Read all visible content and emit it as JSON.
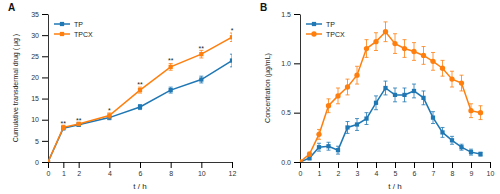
{
  "chart_data": [
    {
      "type": "line",
      "title": "A",
      "x_label": "t / h",
      "y_label": "Cumulative transdermal drug ( μg )",
      "x": [
        0,
        1,
        2,
        4,
        6,
        8,
        10,
        12
      ],
      "series": [
        {
          "name": "TP",
          "marker": "square",
          "values": [
            0,
            8.0,
            8.8,
            10.5,
            13.0,
            17.0,
            19.5,
            24.0
          ],
          "errors": [
            0,
            0.4,
            0.4,
            0.5,
            0.6,
            0.7,
            0.8,
            1.5
          ]
        },
        {
          "name": "TPCX",
          "marker": "square",
          "values": [
            0,
            8.2,
            9.0,
            11.0,
            17.0,
            22.5,
            25.5,
            29.5
          ],
          "errors": [
            0,
            0.5,
            0.4,
            0.6,
            0.7,
            0.8,
            0.9,
            1.0
          ]
        }
      ],
      "annotations": [
        {
          "x": 1,
          "y": 9.0,
          "text": "**"
        },
        {
          "x": 2,
          "y": 9.8,
          "text": "**"
        },
        {
          "x": 4,
          "y": 12.0,
          "text": "*"
        },
        {
          "x": 6,
          "y": 18.2,
          "text": "**"
        },
        {
          "x": 8,
          "y": 23.8,
          "text": "**"
        },
        {
          "x": 10,
          "y": 26.8,
          "text": "**"
        },
        {
          "x": 12,
          "y": 31.0,
          "text": "*"
        }
      ],
      "xlim": [
        0,
        12
      ],
      "ylim": [
        0,
        35
      ],
      "xticks": [
        0,
        1,
        2,
        4,
        6,
        8,
        10,
        12
      ],
      "yticks": [
        0,
        5,
        10,
        15,
        20,
        25,
        30,
        35
      ],
      "legend": "upper left"
    },
    {
      "type": "line",
      "title": "B",
      "x_label": "t / h",
      "y_label": "Concentration (μg/mL)",
      "x": [
        0,
        0.5,
        1,
        1.5,
        2,
        2.5,
        3,
        3.5,
        4,
        4.5,
        5,
        5.5,
        6,
        6.5,
        7,
        7.5,
        8,
        8.5,
        9,
        9.5
      ],
      "series": [
        {
          "name": "TP",
          "marker": "square",
          "values": [
            0,
            0.04,
            0.15,
            0.16,
            0.12,
            0.35,
            0.38,
            0.44,
            0.6,
            0.75,
            0.68,
            0.68,
            0.72,
            0.65,
            0.45,
            0.3,
            0.22,
            0.15,
            0.1,
            0.08
          ],
          "errors": [
            0,
            0.02,
            0.04,
            0.04,
            0.04,
            0.06,
            0.06,
            0.06,
            0.07,
            0.07,
            0.07,
            0.07,
            0.07,
            0.07,
            0.06,
            0.05,
            0.04,
            0.03,
            0.03,
            0.02
          ]
        },
        {
          "name": "TPCX",
          "marker": "circle",
          "values": [
            0,
            0.08,
            0.28,
            0.57,
            0.67,
            0.76,
            0.88,
            1.15,
            1.22,
            1.32,
            1.2,
            1.15,
            1.12,
            1.08,
            1.02,
            0.95,
            0.84,
            0.8,
            0.52,
            0.5
          ],
          "errors": [
            0,
            0.02,
            0.05,
            0.07,
            0.08,
            0.08,
            0.09,
            0.09,
            0.09,
            0.1,
            0.1,
            0.09,
            0.09,
            0.09,
            0.09,
            0.08,
            0.08,
            0.08,
            0.07,
            0.07
          ]
        }
      ],
      "xlim": [
        0,
        10
      ],
      "ylim": [
        0,
        1.5
      ],
      "xticks": [
        0,
        1,
        2,
        3,
        4,
        5,
        6,
        7,
        8,
        9,
        10
      ],
      "yticks": [
        {
          "value": 0.0,
          "label": "0.0"
        },
        0.5,
        {
          "value": 1.0,
          "label": "1.0"
        },
        1.5
      ],
      "legend": "upper left"
    }
  ]
}
